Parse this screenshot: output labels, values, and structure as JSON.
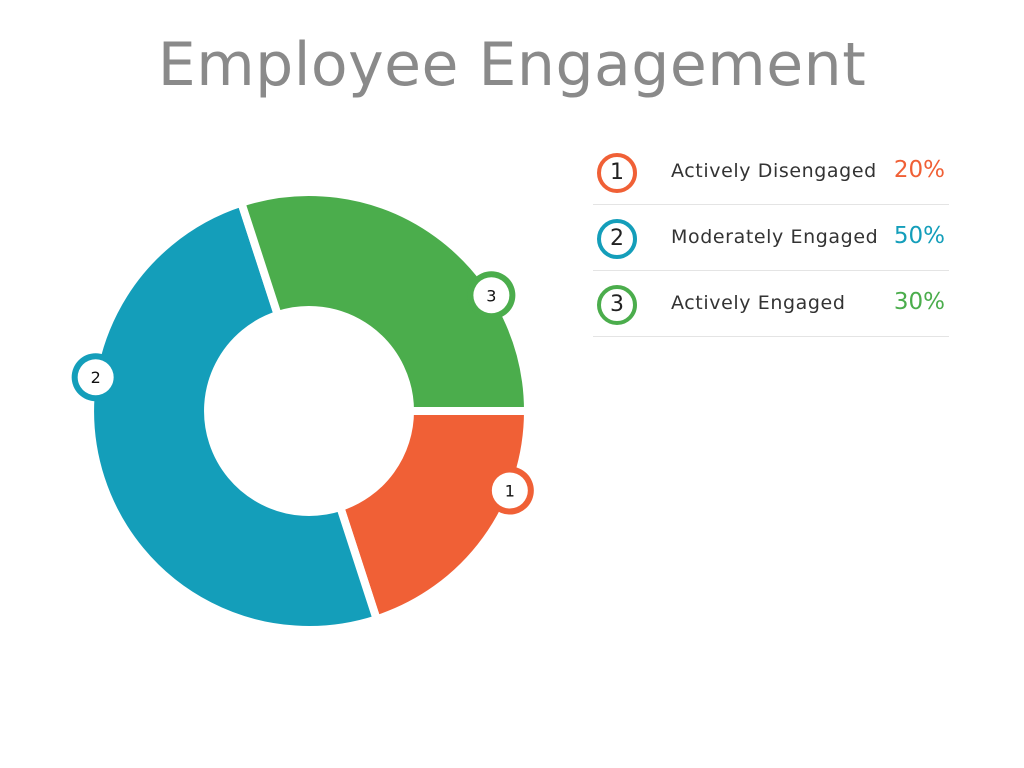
{
  "title": "Employee Engagement",
  "chart_data": {
    "type": "pie",
    "title": "Employee Engagement",
    "donut": true,
    "slices": [
      {
        "marker": "1",
        "label": "Actively Disengaged",
        "value": 20,
        "value_label": "20%",
        "color": "#f06036"
      },
      {
        "marker": "2",
        "label": "Moderately Engaged",
        "value": 50,
        "value_label": "50%",
        "color": "#149eba"
      },
      {
        "marker": "3",
        "label": "Actively Engaged",
        "value": 30,
        "value_label": "30%",
        "color": "#4bad4c"
      }
    ]
  }
}
